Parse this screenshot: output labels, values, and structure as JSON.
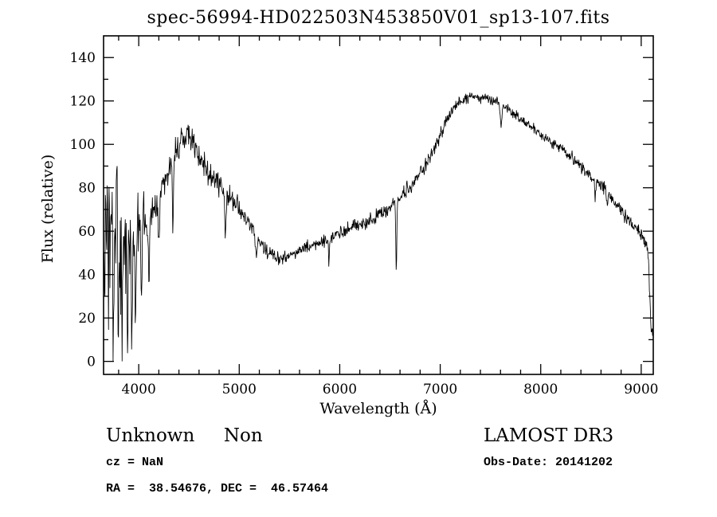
{
  "colors": {
    "fg": "#000000",
    "bg": "#ffffff"
  },
  "title": "spec-56994-HD022503N453850V01_sp13-107.fits",
  "footer": {
    "class_label": "Unknown     Non",
    "cz": "cz = NaN",
    "radec": "RA =  38.54676, DEC =  46.57464",
    "survey": "LAMOST DR3",
    "obs_date": "Obs-Date: 20141202"
  },
  "chart_data": {
    "type": "line",
    "title": "spec-56994-HD022503N453850V01_sp13-107.fits",
    "xlabel": "Wavelength (Å)",
    "ylabel": "Flux (relative)",
    "legend": "none",
    "grid": false,
    "xlim": [
      3650,
      9120
    ],
    "ylim": [
      -6,
      150
    ],
    "x_ticks": [
      4000,
      5000,
      6000,
      7000,
      8000,
      9000
    ],
    "y_ticks": [
      0,
      20,
      40,
      60,
      80,
      100,
      120,
      140
    ],
    "x_minor_step": 200,
    "y_minor_step": 10,
    "line_color": "#000000",
    "sample_step": 4.5,
    "clip": [
      0,
      147
    ],
    "continuum": [
      [
        3650,
        58
      ],
      [
        3700,
        55
      ],
      [
        3750,
        52
      ],
      [
        3800,
        55
      ],
      [
        3850,
        58
      ],
      [
        3900,
        58
      ],
      [
        3950,
        60
      ],
      [
        4000,
        62
      ],
      [
        4060,
        64
      ],
      [
        4120,
        68
      ],
      [
        4200,
        76
      ],
      [
        4280,
        86
      ],
      [
        4350,
        95
      ],
      [
        4420,
        101
      ],
      [
        4480,
        104
      ],
      [
        4530,
        102
      ],
      [
        4600,
        95
      ],
      [
        4650,
        90
      ],
      [
        4700,
        86
      ],
      [
        4780,
        82
      ],
      [
        4850,
        80
      ],
      [
        4920,
        76
      ],
      [
        5000,
        70
      ],
      [
        5080,
        64
      ],
      [
        5160,
        58
      ],
      [
        5240,
        53
      ],
      [
        5320,
        49
      ],
      [
        5400,
        47.5
      ],
      [
        5480,
        48
      ],
      [
        5560,
        50
      ],
      [
        5650,
        52
      ],
      [
        5750,
        54
      ],
      [
        5850,
        55.5
      ],
      [
        5950,
        58
      ],
      [
        6050,
        60
      ],
      [
        6150,
        62
      ],
      [
        6250,
        64
      ],
      [
        6350,
        66
      ],
      [
        6450,
        69
      ],
      [
        6550,
        73
      ],
      [
        6650,
        78
      ],
      [
        6750,
        83
      ],
      [
        6850,
        90
      ],
      [
        6950,
        99
      ],
      [
        7050,
        110
      ],
      [
        7120,
        116
      ],
      [
        7200,
        120
      ],
      [
        7280,
        121.5
      ],
      [
        7360,
        122
      ],
      [
        7450,
        121.5
      ],
      [
        7550,
        119.5
      ],
      [
        7650,
        117
      ],
      [
        7750,
        113.5
      ],
      [
        7850,
        110
      ],
      [
        7950,
        106.5
      ],
      [
        8050,
        103
      ],
      [
        8150,
        100
      ],
      [
        8250,
        96.5
      ],
      [
        8350,
        92.5
      ],
      [
        8450,
        88
      ],
      [
        8550,
        83.5
      ],
      [
        8650,
        78.5
      ],
      [
        8750,
        72.5
      ],
      [
        8850,
        66.5
      ],
      [
        8950,
        61
      ],
      [
        9030,
        57
      ],
      [
        9070,
        50
      ],
      [
        9100,
        14
      ],
      [
        9120,
        10
      ]
    ],
    "noise": {
      "seed": 3,
      "amplitude": [
        [
          3650,
          62
        ],
        [
          3700,
          60
        ],
        [
          3760,
          52
        ],
        [
          3820,
          44
        ],
        [
          3880,
          34
        ],
        [
          3940,
          26
        ],
        [
          4000,
          20
        ],
        [
          4080,
          15
        ],
        [
          4160,
          13
        ],
        [
          4260,
          11
        ],
        [
          4400,
          10.5
        ],
        [
          4550,
          10
        ],
        [
          4700,
          9
        ],
        [
          4850,
          8
        ],
        [
          5000,
          7
        ],
        [
          5150,
          6
        ],
        [
          5300,
          5
        ],
        [
          5500,
          4.5
        ],
        [
          5700,
          4.5
        ],
        [
          5900,
          4.8
        ],
        [
          6100,
          5
        ],
        [
          6300,
          5
        ],
        [
          6500,
          4.8
        ],
        [
          6700,
          4.5
        ],
        [
          6900,
          4.2
        ],
        [
          7100,
          4
        ],
        [
          7300,
          3.6
        ],
        [
          7500,
          3.4
        ],
        [
          7700,
          3.4
        ],
        [
          7900,
          3.5
        ],
        [
          8100,
          3.8
        ],
        [
          8300,
          4
        ],
        [
          8500,
          4.2
        ],
        [
          8700,
          4.5
        ],
        [
          8900,
          4.8
        ],
        [
          9050,
          5
        ],
        [
          9120,
          8
        ]
      ]
    },
    "absorption_lines": [
      [
        3745,
        50,
        6
      ],
      [
        3798,
        42,
        5
      ],
      [
        3835,
        46,
        5
      ],
      [
        3890,
        40,
        5
      ],
      [
        3934,
        52,
        6
      ],
      [
        3969,
        48,
        6
      ],
      [
        4026,
        40,
        5
      ],
      [
        4102,
        42,
        5
      ],
      [
        4200,
        18,
        5
      ],
      [
        4340,
        30,
        6
      ],
      [
        4861,
        20,
        6
      ],
      [
        5170,
        8,
        6
      ],
      [
        5893,
        10,
        5
      ],
      [
        6563,
        34,
        5
      ],
      [
        7605,
        9,
        8
      ],
      [
        8542,
        8,
        6
      ],
      [
        8662,
        7,
        6
      ]
    ]
  }
}
